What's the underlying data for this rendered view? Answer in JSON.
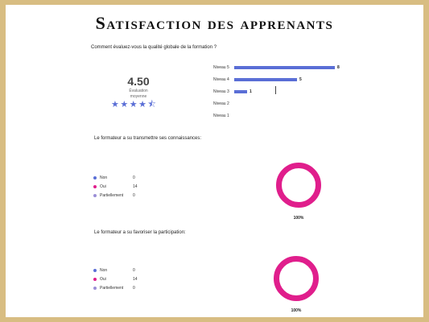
{
  "title": "Satisfaction des apprenants",
  "colors": {
    "frame": "#d8bd82",
    "bar": "#5a6ed6",
    "non": "#5a6ed6",
    "oui": "#e01e8c",
    "partiellement": "#9b8fd6"
  },
  "rating": {
    "question": "Comment évaluez-vous la qualité globale de la formation ?",
    "average": "4.50",
    "average_label_line1": "Évaluation",
    "average_label_line2": "moyenne",
    "stars": "★★★★",
    "half_star": "⯪"
  },
  "chart_data": [
    {
      "type": "bar",
      "orientation": "horizontal",
      "categories": [
        "Niveau 5",
        "Niveau 4",
        "Niveau 3",
        "Niveau 2",
        "Niveau 1"
      ],
      "values": [
        8,
        5,
        1,
        null,
        null
      ],
      "value_labels": [
        "8",
        "5",
        "1",
        "",
        ""
      ],
      "xlim": [
        0,
        8
      ],
      "grid": false
    },
    {
      "type": "pie",
      "title": "Le formateur a su transmettre ses connaissances:",
      "legend": [
        {
          "label": "Non",
          "value": 0
        },
        {
          "label": "Oui",
          "value": 14
        },
        {
          "label": "Partiellement",
          "value": 0
        }
      ],
      "value_texts": [
        "0",
        "14",
        "0"
      ],
      "center_label": "100%",
      "legend_position": "left"
    },
    {
      "type": "pie",
      "title": "Le formateur a su favoriser la participation:",
      "legend": [
        {
          "label": "Non",
          "value": 0
        },
        {
          "label": "Oui",
          "value": 14
        },
        {
          "label": "Partiellement",
          "value": 0
        }
      ],
      "value_texts": [
        "0",
        "14",
        "0"
      ],
      "center_label": "100%",
      "legend_position": "left"
    }
  ]
}
